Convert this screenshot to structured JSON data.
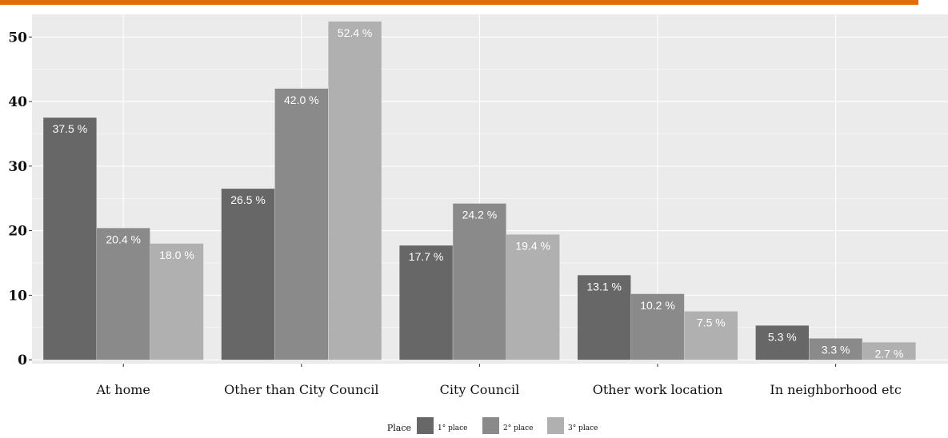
{
  "chart_data": {
    "type": "bar",
    "categories": [
      "At home",
      "Other than City Council",
      "City Council",
      "Other work location",
      "In neighborhood etc"
    ],
    "series": [
      {
        "name": "1° place",
        "values": [
          37.5,
          26.5,
          17.7,
          13.1,
          5.3
        ],
        "labels": [
          "37.5 %",
          "26.5 %",
          "17.7 %",
          "13.1 %",
          "5.3 %"
        ]
      },
      {
        "name": "2° place",
        "values": [
          20.4,
          42.0,
          24.2,
          10.2,
          3.3
        ],
        "labels": [
          "20.4 %",
          "42.0 %",
          "24.2 %",
          "10.2 %",
          "3.3 %"
        ]
      },
      {
        "name": "3° place",
        "values": [
          18.0,
          52.4,
          19.4,
          7.5,
          2.7
        ],
        "labels": [
          "18.0 %",
          "52.4 %",
          "19.4 %",
          "7.5 %",
          "2.7 %"
        ]
      }
    ],
    "yticks": [
      "0",
      "10",
      "20",
      "30",
      "40",
      "50"
    ],
    "ylim": [
      -0.6,
      53.5
    ],
    "legend": {
      "title": "Place",
      "position": "bottom"
    },
    "grid": true
  },
  "colors": {
    "series": [
      "#676767",
      "#8a8a8a",
      "#b0b0b0"
    ],
    "panel": "#ebebeb",
    "gridline": "#ffffff",
    "accent": "#e36c0a"
  }
}
